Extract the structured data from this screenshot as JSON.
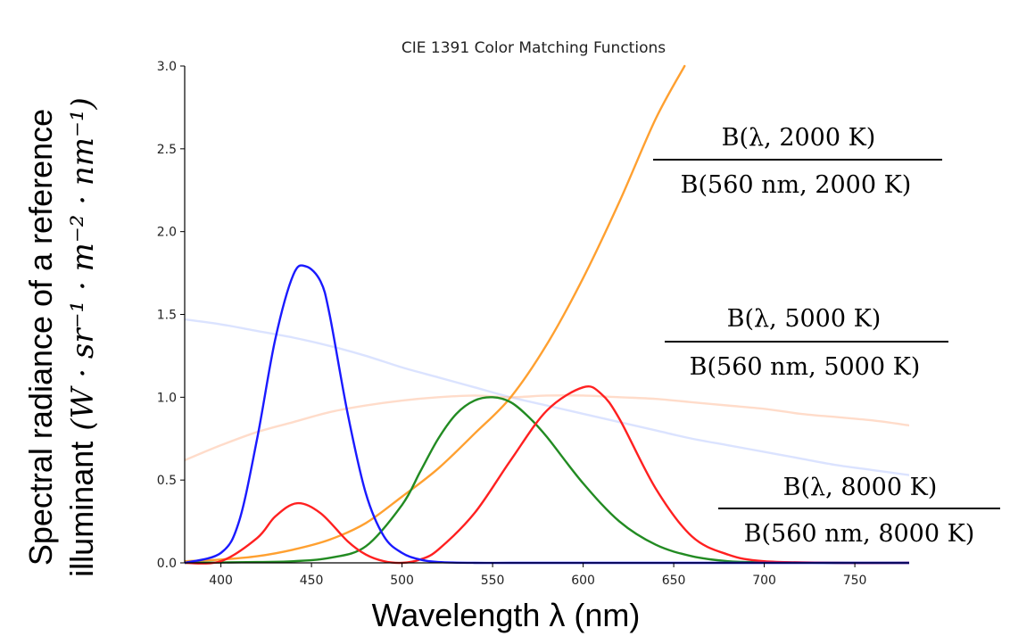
{
  "chart_data": {
    "type": "line",
    "title": "CIE 1391 Color Matching Functions",
    "xlabel": "Wavelength λ (nm)",
    "ylabel_line1": "Spectral radiance of a reference",
    "ylabel_line2_text": "illuminant",
    "ylabel_units": "(W · sr⁻¹ · m⁻² · nm⁻¹)",
    "xlim": [
      380,
      780
    ],
    "ylim": [
      0,
      3.0
    ],
    "xticks": [
      400,
      450,
      500,
      550,
      600,
      650,
      700,
      750
    ],
    "yticks": [
      0.0,
      0.5,
      1.0,
      1.5,
      2.0,
      2.5,
      3.0
    ],
    "ytick_labels": [
      "0.0",
      "0.5",
      "1.0",
      "1.5",
      "2.0",
      "2.5",
      "3.0"
    ],
    "grid": false,
    "series": [
      {
        "color": "#1a1aff",
        "opacity": 1.0,
        "x": [
          380,
          400,
          410,
          420,
          430,
          440,
          447,
          455,
          460,
          470,
          480,
          490,
          500,
          510,
          520,
          540,
          560,
          600,
          650,
          700,
          780
        ],
        "y": [
          0.0,
          0.06,
          0.25,
          0.75,
          1.35,
          1.74,
          1.79,
          1.7,
          1.5,
          0.9,
          0.42,
          0.16,
          0.06,
          0.02,
          0.005,
          0.0,
          0.0,
          0.0,
          0.0,
          0.0,
          0.0
        ]
      },
      {
        "color": "#ff2020",
        "opacity": 1.0,
        "x": [
          380,
          400,
          420,
          430,
          442,
          455,
          470,
          480,
          490,
          500,
          510,
          520,
          540,
          560,
          580,
          600,
          610,
          620,
          640,
          660,
          680,
          700,
          740,
          780
        ],
        "y": [
          0.0,
          0.01,
          0.15,
          0.28,
          0.36,
          0.3,
          0.13,
          0.05,
          0.01,
          0.0,
          0.02,
          0.08,
          0.3,
          0.62,
          0.92,
          1.06,
          1.02,
          0.87,
          0.45,
          0.16,
          0.05,
          0.01,
          0.0,
          0.0
        ]
      },
      {
        "color": "#228b22",
        "opacity": 1.0,
        "x": [
          380,
          420,
          440,
          460,
          480,
          500,
          510,
          520,
          530,
          540,
          550,
          560,
          570,
          580,
          600,
          620,
          640,
          660,
          680,
          700,
          740,
          780
        ],
        "y": [
          0.0,
          0.005,
          0.01,
          0.03,
          0.1,
          0.35,
          0.55,
          0.75,
          0.9,
          0.98,
          1.0,
          0.97,
          0.88,
          0.76,
          0.48,
          0.25,
          0.11,
          0.04,
          0.01,
          0.004,
          0.0,
          0.0
        ]
      },
      {
        "name": "B(λ, 2000 K) / B(560 nm, 2000 K)",
        "color": "#ffa030",
        "opacity": 1.0,
        "x": [
          380,
          400,
          420,
          440,
          460,
          480,
          500,
          520,
          540,
          560,
          580,
          600,
          620,
          640,
          656
        ],
        "y": [
          0.01,
          0.02,
          0.04,
          0.08,
          0.14,
          0.24,
          0.4,
          0.57,
          0.78,
          1.0,
          1.32,
          1.72,
          2.18,
          2.68,
          3.0
        ]
      },
      {
        "name": "B(λ, 5000 K) / B(560 nm, 5000 K)",
        "color": "#ffb28a",
        "opacity": 0.45,
        "x": [
          380,
          400,
          420,
          440,
          460,
          480,
          500,
          520,
          540,
          560,
          580,
          600,
          620,
          640,
          660,
          680,
          700,
          720,
          740,
          760,
          780
        ],
        "y": [
          0.62,
          0.71,
          0.79,
          0.85,
          0.91,
          0.95,
          0.98,
          1.0,
          1.01,
          1.0,
          1.01,
          1.01,
          1.0,
          0.99,
          0.97,
          0.95,
          0.93,
          0.9,
          0.88,
          0.86,
          0.83
        ]
      },
      {
        "name": "B(λ, 8000 K) / B(560 nm, 8000 K)",
        "color": "#b8c8ff",
        "opacity": 0.5,
        "x": [
          380,
          400,
          420,
          440,
          460,
          480,
          500,
          520,
          540,
          560,
          580,
          600,
          620,
          640,
          660,
          680,
          700,
          720,
          740,
          760,
          780
        ],
        "y": [
          1.47,
          1.44,
          1.4,
          1.36,
          1.31,
          1.25,
          1.18,
          1.12,
          1.06,
          1.0,
          0.95,
          0.9,
          0.85,
          0.8,
          0.75,
          0.71,
          0.67,
          0.63,
          0.59,
          0.56,
          0.53
        ]
      }
    ],
    "annotations": [
      {
        "numerator": "B(λ, 2000 K)",
        "denominator": "B(560 nm, 2000 K)"
      },
      {
        "numerator": "B(λ, 5000 K)",
        "denominator": "B(560 nm, 5000 K)"
      },
      {
        "numerator": "B(λ, 8000 K)",
        "denominator": "B(560 nm, 8000 K)"
      }
    ]
  }
}
